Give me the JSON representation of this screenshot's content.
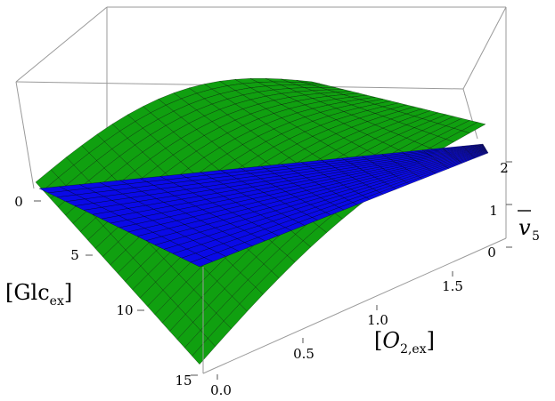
{
  "chart_data": {
    "type": "surface3d",
    "title": "",
    "axes": {
      "glc": {
        "ticks": [
          "0",
          "5",
          "10",
          "15"
        ],
        "range": [
          0,
          15
        ]
      },
      "o2": {
        "ticks": [
          "0.0",
          "0.5",
          "1.0",
          "1.5"
        ],
        "range": [
          0,
          2
        ]
      },
      "v5": {
        "ticks": [
          "0",
          "1",
          "2"
        ],
        "range": [
          0,
          2.5
        ]
      }
    },
    "labels": {
      "glc_main": "[Glc",
      "glc_sub": "ex",
      "glc_close": "]",
      "o2_open": "[",
      "o2_main": "O",
      "o2_sub": "2,ex",
      "o2_close": "]",
      "v5_main": "v",
      "v5_sub": "5"
    },
    "surfaces": [
      {
        "name": "",
        "color": "#10a010",
        "description_values": {
          "corners": [
            {
              "glc": 0,
              "o2": 0,
              "v5": 0.05
            },
            {
              "glc": 0,
              "o2": 2,
              "v5": 2.25
            },
            {
              "glc": 15,
              "o2": 0,
              "v5": 0.0
            },
            {
              "glc": 15,
              "o2": 2,
              "v5": 1.6
            }
          ],
          "max_v5": 2.6
        }
      },
      {
        "name": "",
        "color": "#0a0ae6",
        "description_values": {
          "corners": [
            {
              "glc": 0,
              "o2": 0,
              "v5": 0.05
            },
            {
              "glc": 0,
              "o2": 2,
              "v5": 2.4
            },
            {
              "glc": 15,
              "o2": 0,
              "v5": 0.0
            },
            {
              "glc": 15,
              "o2": 2,
              "v5": 2.3
            }
          ]
        }
      }
    ],
    "grid_mesh": true,
    "bounding_box": true
  }
}
